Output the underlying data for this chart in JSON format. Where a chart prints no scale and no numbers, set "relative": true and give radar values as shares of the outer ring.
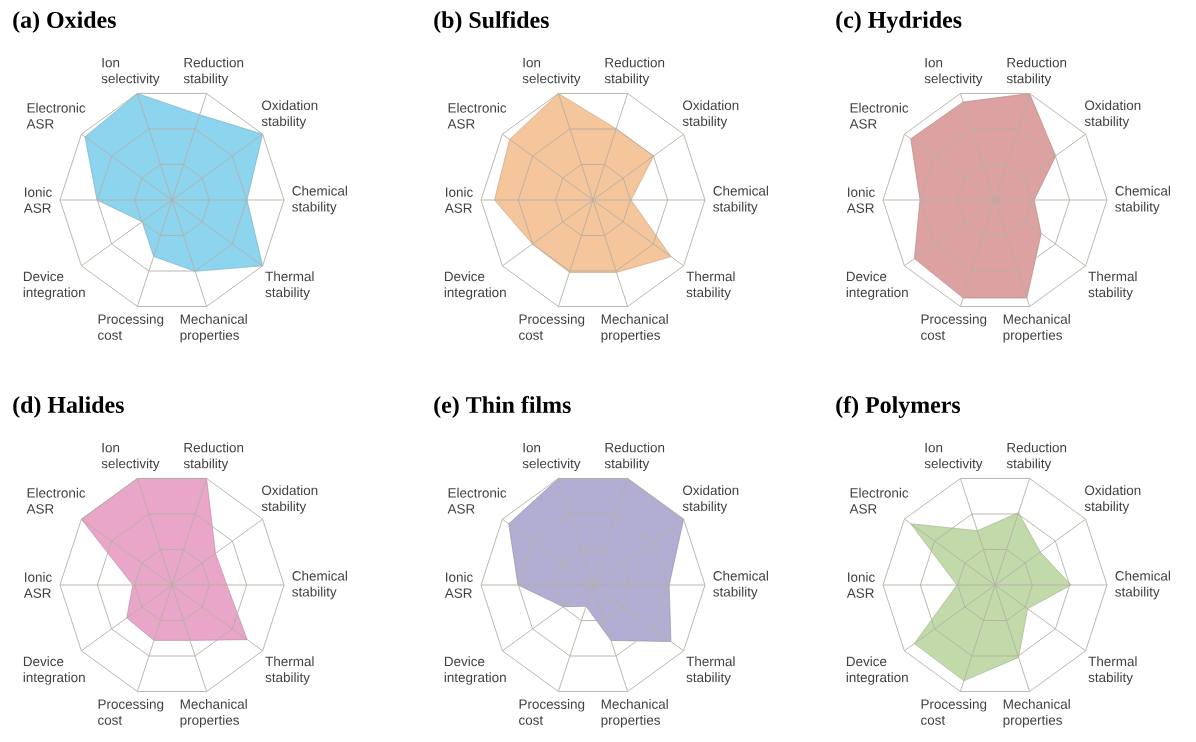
{
  "chart_data": [
    {
      "type": "radar",
      "title": "(a) Oxides",
      "categories": [
        "Ion selectivity",
        "Reduction stability",
        "Oxidation stability",
        "Chemical stability",
        "Thermal stability",
        "Mechanical properties",
        "Processing cost",
        "Device integration",
        "Ionic ASR",
        "Electronic ASR"
      ],
      "relative": true,
      "grid": true,
      "series": [
        {
          "color": "#8dd4ef",
          "values": [
            1,
            0.8,
            1,
            0.67,
            1,
            0.67,
            0.53,
            0.33,
            0.67,
            0.96
          ]
        }
      ]
    },
    {
      "type": "radar",
      "title": "(b) Sulfides",
      "categories": [
        "Ion selectivity",
        "Reduction stability",
        "Oxidation stability",
        "Chemical stability",
        "Thermal stability",
        "Mechanical properties",
        "Processing cost",
        "Device integration",
        "Ionic ASR",
        "Electronic ASR"
      ],
      "relative": true,
      "grid": true,
      "series": [
        {
          "color": "#f5c59c",
          "values": [
            1,
            0.67,
            0.67,
            0.34,
            0.86,
            0.68,
            0.68,
            0.67,
            0.88,
            0.92
          ]
        }
      ]
    },
    {
      "type": "radar",
      "title": "(c) Hydrides",
      "categories": [
        "Ion selectivity",
        "Reduction stability",
        "Oxidation stability",
        "Chemical stability",
        "Thermal stability",
        "Mechanical properties",
        "Processing cost",
        "Device integration",
        "Ionic ASR",
        "Electronic ASR"
      ],
      "relative": true,
      "grid": true,
      "series": [
        {
          "color": "#dda1a1",
          "values": [
            0.92,
            1,
            0.67,
            0.35,
            0.51,
            0.92,
            0.92,
            0.89,
            0.67,
            0.93
          ]
        }
      ]
    },
    {
      "type": "radar",
      "title": "(d) Halides",
      "categories": [
        "Ion selectivity",
        "Reduction stability",
        "Oxidation stability",
        "Chemical stability",
        "Thermal stability",
        "Mechanical properties",
        "Processing cost",
        "Device integration",
        "Ionic ASR",
        "Electronic ASR"
      ],
      "relative": true,
      "grid": true,
      "series": [
        {
          "color": "#e9a6c8",
          "values": [
            1,
            1,
            0.48,
            0.49,
            0.83,
            0.52,
            0.52,
            0.5,
            0.35,
            1
          ]
        }
      ]
    },
    {
      "type": "radar",
      "title": "(e) Thin films",
      "categories": [
        "Ion selectivity",
        "Reduction stability",
        "Oxidation stability",
        "Chemical stability",
        "Thermal stability",
        "Mechanical properties",
        "Processing cost",
        "Device integration",
        "Ionic ASR",
        "Electronic ASR"
      ],
      "relative": true,
      "grid": true,
      "series": [
        {
          "color": "#b2aed3",
          "values": [
            1,
            1,
            1,
            0.68,
            0.86,
            0.52,
            0.2,
            0.33,
            0.67,
            0.93
          ]
        }
      ]
    },
    {
      "type": "radar",
      "title": "(f) Polymers",
      "categories": [
        "Ion selectivity",
        "Reduction stability",
        "Oxidation stability",
        "Chemical stability",
        "Thermal stability",
        "Mechanical properties",
        "Processing cost",
        "Device integration",
        "Ionic ASR",
        "Electronic ASR"
      ],
      "relative": true,
      "grid": true,
      "series": [
        {
          "color": "#c2daaa",
          "values": [
            0.51,
            0.68,
            0.5,
            0.68,
            0.36,
            0.68,
            0.9,
            0.89,
            0.34,
            0.93
          ]
        }
      ]
    }
  ]
}
